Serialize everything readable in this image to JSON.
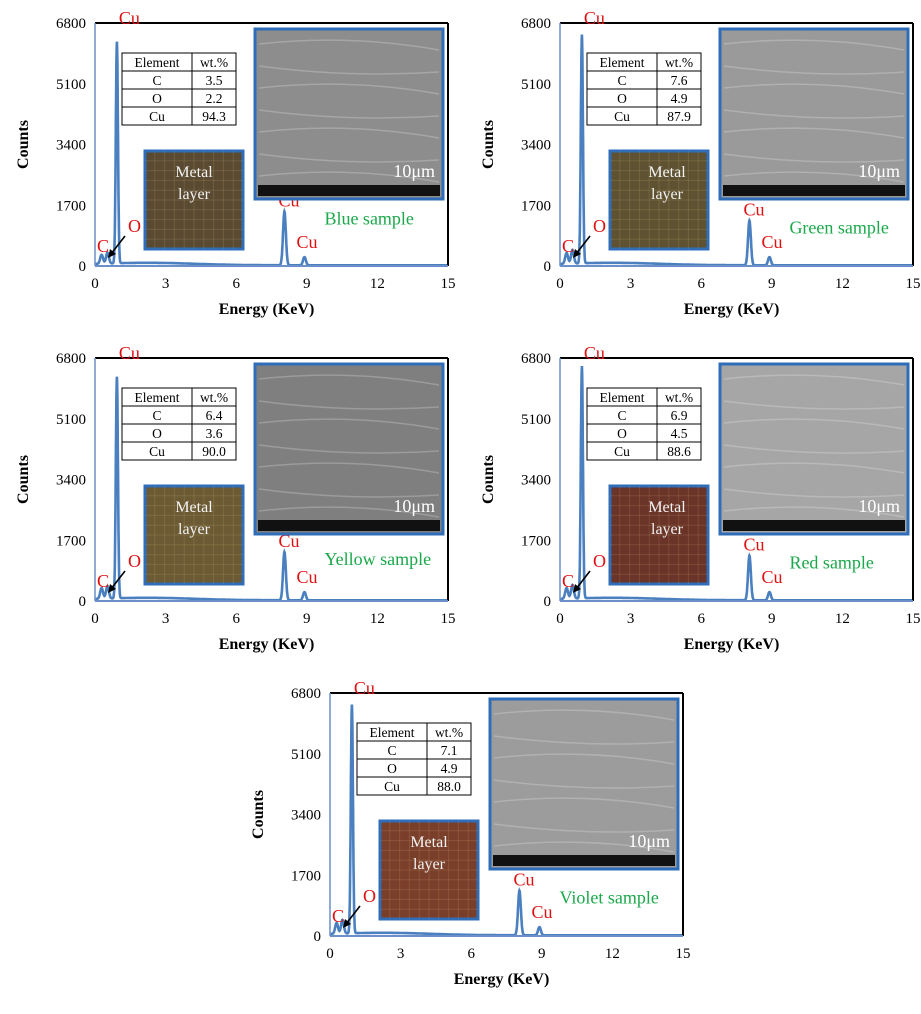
{
  "figure": {
    "panels": [
      {
        "sample_label": "Blue sample",
        "table": {
          "headers": [
            "Element",
            "wt.%"
          ],
          "rows": [
            [
              "C",
              "3.5"
            ],
            [
              "O",
              "2.2"
            ],
            [
              "Cu",
              "94.3"
            ]
          ]
        },
        "scale_bar": "10μm",
        "inset_text": [
          "Metal",
          "layer"
        ],
        "colors": {
          "photo": "#5a4a32",
          "sem": "#8d8d8d"
        }
      },
      {
        "sample_label": "Green sample",
        "table": {
          "headers": [
            "Element",
            "wt.%"
          ],
          "rows": [
            [
              "C",
              "7.6"
            ],
            [
              "O",
              "4.9"
            ],
            [
              "Cu",
              "87.9"
            ]
          ]
        },
        "scale_bar": "10μm",
        "inset_text": [
          "Metal",
          "layer"
        ],
        "colors": {
          "photo": "#5e5232",
          "sem": "#9a9a9a"
        }
      },
      {
        "sample_label": "Yellow sample",
        "table": {
          "headers": [
            "Element",
            "wt.%"
          ],
          "rows": [
            [
              "C",
              "6.4"
            ],
            [
              "O",
              "3.6"
            ],
            [
              "Cu",
              "90.0"
            ]
          ]
        },
        "scale_bar": "10μm",
        "inset_text": [
          "Metal",
          "layer"
        ],
        "colors": {
          "photo": "#6b5a34",
          "sem": "#7f7f7f"
        }
      },
      {
        "sample_label": "Red sample",
        "table": {
          "headers": [
            "Element",
            "wt.%"
          ],
          "rows": [
            [
              "C",
              "6.9"
            ],
            [
              "O",
              "4.5"
            ],
            [
              "Cu",
              "88.6"
            ]
          ]
        },
        "scale_bar": "10μm",
        "inset_text": [
          "Metal",
          "layer"
        ],
        "colors": {
          "photo": "#6a3428",
          "sem": "#a6a6a6"
        }
      },
      {
        "sample_label": "Violet sample",
        "table": {
          "headers": [
            "Element",
            "wt.%"
          ],
          "rows": [
            [
              "C",
              "7.1"
            ],
            [
              "O",
              "4.9"
            ],
            [
              "Cu",
              "88.0"
            ]
          ]
        },
        "scale_bar": "10μm",
        "inset_text": [
          "Metal",
          "layer"
        ],
        "colors": {
          "photo": "#7a3f2a",
          "sem": "#9c9c9c"
        }
      }
    ]
  },
  "chart_data": [
    {
      "type": "line",
      "xlabel": "Energy (KeV)",
      "ylabel": "Counts",
      "xlim": [
        0,
        15
      ],
      "ylim": [
        0,
        6800
      ],
      "xticks": [
        "0",
        "3",
        "6",
        "9",
        "12",
        "15"
      ],
      "yticks": [
        "0",
        "1700",
        "3400",
        "5100",
        "6800"
      ],
      "line_color": "#4a7fc0",
      "peaks": [
        {
          "label": "C",
          "x": 0.28,
          "y": 250
        },
        {
          "label": "O",
          "x": 0.53,
          "y": 300
        },
        {
          "label": "Cu",
          "x": 0.93,
          "y": 6200
        },
        {
          "label": "Cu",
          "x": 8.05,
          "y": 1500
        },
        {
          "label": "Cu",
          "x": 8.9,
          "y": 230
        }
      ]
    },
    {
      "type": "line",
      "xlabel": "Energy (KeV)",
      "ylabel": "Counts",
      "xlim": [
        0,
        15
      ],
      "ylim": [
        0,
        6800
      ],
      "xticks": [
        "0",
        "3",
        "6",
        "9",
        "12",
        "15"
      ],
      "yticks": [
        "0",
        "1700",
        "3400",
        "5100",
        "6800"
      ],
      "line_color": "#4a7fc0",
      "peaks": [
        {
          "label": "C",
          "x": 0.28,
          "y": 300
        },
        {
          "label": "O",
          "x": 0.53,
          "y": 380
        },
        {
          "label": "Cu",
          "x": 0.93,
          "y": 6400
        },
        {
          "label": "Cu",
          "x": 8.05,
          "y": 1250
        },
        {
          "label": "Cu",
          "x": 8.9,
          "y": 230
        }
      ]
    },
    {
      "type": "line",
      "xlabel": "Energy (KeV)",
      "ylabel": "Counts",
      "xlim": [
        0,
        15
      ],
      "ylim": [
        0,
        6800
      ],
      "xticks": [
        "0",
        "3",
        "6",
        "9",
        "12",
        "15"
      ],
      "yticks": [
        "0",
        "1700",
        "3400",
        "5100",
        "6800"
      ],
      "line_color": "#4a7fc0",
      "peaks": [
        {
          "label": "C",
          "x": 0.28,
          "y": 300
        },
        {
          "label": "O",
          "x": 0.53,
          "y": 350
        },
        {
          "label": "Cu",
          "x": 0.93,
          "y": 6200
        },
        {
          "label": "Cu",
          "x": 8.05,
          "y": 1350
        },
        {
          "label": "Cu",
          "x": 8.9,
          "y": 230
        }
      ]
    },
    {
      "type": "line",
      "xlabel": "Energy (KeV)",
      "ylabel": "Counts",
      "xlim": [
        0,
        15
      ],
      "ylim": [
        0,
        6800
      ],
      "xticks": [
        "0",
        "3",
        "6",
        "9",
        "12",
        "15"
      ],
      "yticks": [
        "0",
        "1700",
        "3400",
        "5100",
        "6800"
      ],
      "line_color": "#4a7fc0",
      "peaks": [
        {
          "label": "C",
          "x": 0.28,
          "y": 300
        },
        {
          "label": "O",
          "x": 0.53,
          "y": 380
        },
        {
          "label": "Cu",
          "x": 0.93,
          "y": 6500
        },
        {
          "label": "Cu",
          "x": 8.05,
          "y": 1250
        },
        {
          "label": "Cu",
          "x": 8.9,
          "y": 230
        }
      ]
    },
    {
      "type": "line",
      "xlabel": "Energy (KeV)",
      "ylabel": "Counts",
      "xlim": [
        0,
        15
      ],
      "ylim": [
        0,
        6800
      ],
      "xticks": [
        "0",
        "3",
        "6",
        "9",
        "12",
        "15"
      ],
      "yticks": [
        "0",
        "1700",
        "3400",
        "5100",
        "6800"
      ],
      "line_color": "#4a7fc0",
      "peaks": [
        {
          "label": "C",
          "x": 0.28,
          "y": 300
        },
        {
          "label": "O",
          "x": 0.53,
          "y": 380
        },
        {
          "label": "Cu",
          "x": 0.93,
          "y": 6400
        },
        {
          "label": "Cu",
          "x": 8.05,
          "y": 1250
        },
        {
          "label": "Cu",
          "x": 8.9,
          "y": 230
        }
      ]
    }
  ]
}
